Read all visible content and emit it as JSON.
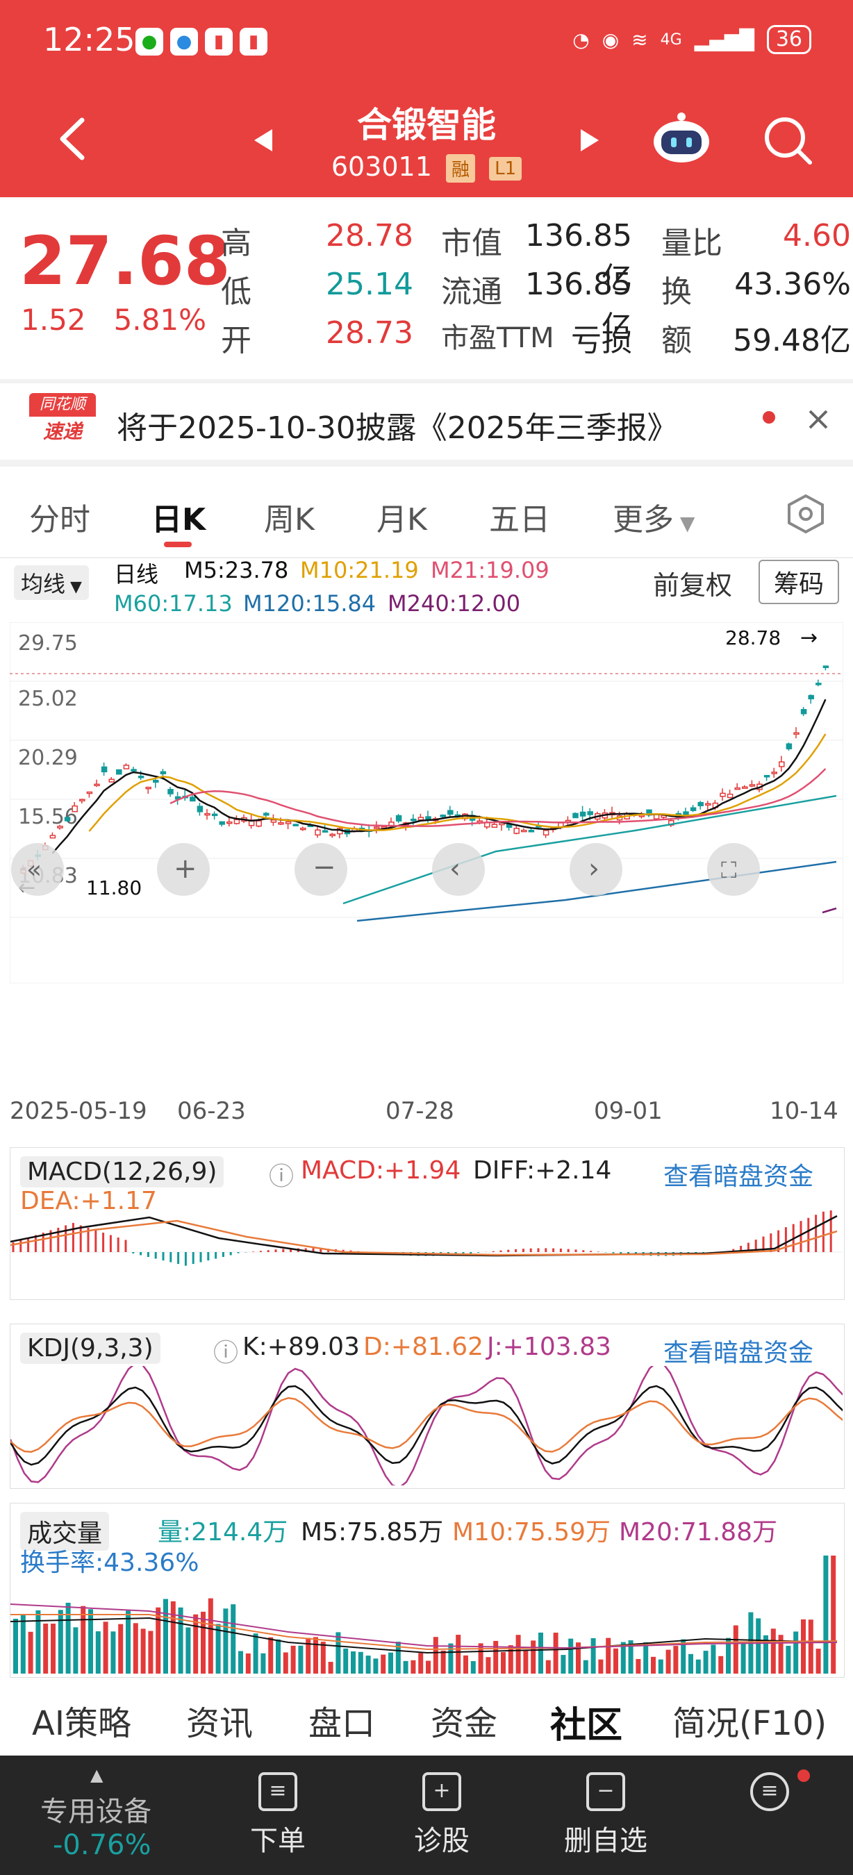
{
  "status_bar": {
    "time": "12:25",
    "network": "4G",
    "battery": "36"
  },
  "nav": {
    "title": "合锻智能",
    "code": "603011",
    "tag_margin": "融",
    "tag_level": "L1"
  },
  "quote": {
    "price": "27.68",
    "change": "1.52",
    "change_pct": "5.81%",
    "high_label": "高",
    "high": "28.78",
    "low_label": "低",
    "low": "25.14",
    "open_label": "开",
    "open": "28.73",
    "mktcap_label": "市值",
    "mktcap": "136.85亿",
    "float_label": "流通",
    "float": "136.85亿",
    "pe_label": "市盈TTM",
    "pe": "亏损",
    "vol_ratio_label": "量比",
    "vol_ratio": "4.60",
    "turnover_label": "换",
    "turnover": "43.36%",
    "amount_label": "额",
    "amount": "59.48亿"
  },
  "notice": {
    "logo_top": "同花顺",
    "logo_bottom": "速递",
    "text": "将于2025-10-30披露《2025年三季报》"
  },
  "kline_tabs": [
    "分时",
    "日K",
    "周K",
    "月K",
    "五日",
    "更多"
  ],
  "ma_bar": {
    "selector": "均线",
    "period": "日线",
    "m5": "M5:23.78",
    "m10": "M10:21.19",
    "m21": "M21:19.09",
    "m60": "M60:17.13",
    "m120": "M120:15.84",
    "m240": "M240:12.00",
    "adjust": "前复权",
    "chips": "筹码"
  },
  "kchart": {
    "y_ticks": [
      "29.75",
      "25.02",
      "20.29",
      "15.56",
      "10.83"
    ],
    "high_mark": "28.78",
    "low_mark": "11.80",
    "x_ticks": [
      "2025-05-19",
      "06-23",
      "07-28",
      "09-01",
      "10-14"
    ]
  },
  "macd": {
    "title": "MACD(12,26,9)",
    "macd": "MACD:+1.94",
    "diff": "DIFF:+2.14",
    "dea": "DEA:+1.17",
    "link": "查看暗盘资金"
  },
  "kdj": {
    "title": "KDJ(9,3,3)",
    "k": "K:+89.03",
    "d": "D:+81.62",
    "j": "J:+103.83",
    "link": "查看暗盘资金"
  },
  "volume": {
    "title": "成交量",
    "vol": "量:214.4万",
    "m5": "M5:75.85万",
    "m10": "M10:75.59万",
    "m20": "M20:71.88万",
    "turnover": "换手率:43.36%"
  },
  "bottom_tabs": [
    "AI策略",
    "资讯",
    "盘口",
    "资金",
    "社区",
    "简况(F10)"
  ],
  "dock": {
    "device": "专用设备",
    "device_chg": "-0.76%",
    "order": "下单",
    "diagnose": "诊股",
    "remove": "删自选",
    "menu": ""
  },
  "colors": {
    "up": "#e23a3a",
    "down": "#139a9a",
    "brand": "#e8403f"
  }
}
